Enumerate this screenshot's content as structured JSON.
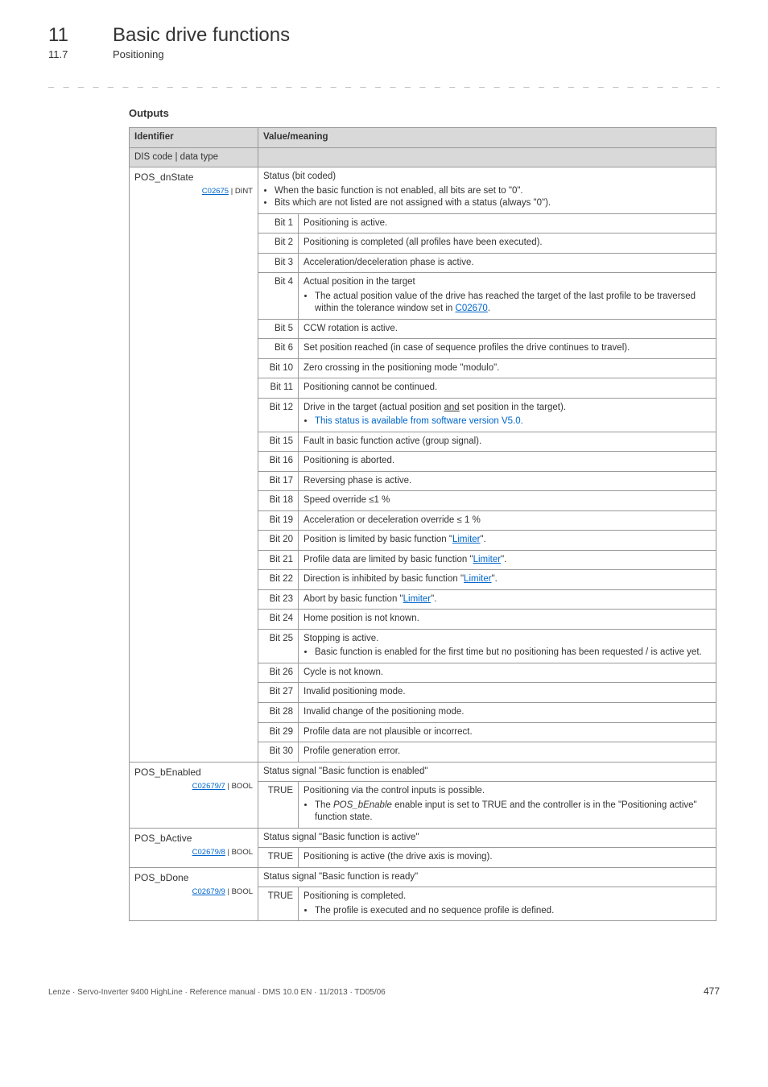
{
  "header": {
    "chapter_num": "11",
    "chapter_title": "Basic drive functions",
    "sub_num": "11.7",
    "sub_title": "Positioning"
  },
  "section_title": "Outputs",
  "table": {
    "headers": {
      "id": "Identifier",
      "val": "Value/meaning",
      "dis": "DIS code | data type"
    },
    "groups": [
      {
        "id_name": "POS_dnState",
        "code": "C02675",
        "type": " | DINT",
        "summary_label": "Status (bit coded)",
        "summary_bullets": [
          "When the basic function is not enabled, all bits are set to \"0\".",
          "Bits which are not listed are not assigned with a status (always \"0\")."
        ],
        "rows": [
          {
            "bit": "Bit 1",
            "html": "Positioning is active."
          },
          {
            "bit": "Bit 2",
            "html": "Positioning is completed (all profiles have been executed)."
          },
          {
            "bit": "Bit 3",
            "html": "Acceleration/deceleration phase is active."
          },
          {
            "bit": "Bit 4",
            "html": "Actual position in the target<ul class='bullets'><li>The actual position value of the drive has reached the target of the last profile to be traversed within the tolerance window set in <span class='link'>C02670</span>.</li></ul>"
          },
          {
            "bit": "Bit 5",
            "html": "CCW rotation is active."
          },
          {
            "bit": "Bit 6",
            "html": "Set position reached (in case of sequence profiles the drive continues to travel)."
          },
          {
            "bit": "Bit 10",
            "html": "Zero crossing in the positioning mode \"modulo\"."
          },
          {
            "bit": "Bit 11",
            "html": "Positioning cannot be continued."
          },
          {
            "bit": "Bit 12",
            "html": "Drive in the target (actual position <span class='und'>and</span> set position in the target).<ul class='bullets'><li><span class='blue-txt'>This status is available from software version V5.0.</span></li></ul>"
          },
          {
            "bit": "Bit 15",
            "html": "Fault in basic function active (group signal)."
          },
          {
            "bit": "Bit 16",
            "html": "Positioning is aborted."
          },
          {
            "bit": "Bit 17",
            "html": "Reversing phase is active."
          },
          {
            "bit": "Bit 18",
            "html": "Speed override ≤1 %"
          },
          {
            "bit": "Bit 19",
            "html": "Acceleration or deceleration override ≤ 1 %"
          },
          {
            "bit": "Bit 20",
            "html": "Position is limited by basic function \"<span class='link'>Limiter</span>\"."
          },
          {
            "bit": "Bit 21",
            "html": "Profile data are limited by basic function \"<span class='link'>Limiter</span>\"."
          },
          {
            "bit": "Bit 22",
            "html": "Direction is inhibited by basic function \"<span class='link'>Limiter</span>\"."
          },
          {
            "bit": "Bit 23",
            "html": "Abort by basic function \"<span class='link'>Limiter</span>\"."
          },
          {
            "bit": "Bit 24",
            "html": "Home position is not known."
          },
          {
            "bit": "Bit 25",
            "html": "Stopping is active.<ul class='bullets'><li>Basic function is enabled for the first time but no positioning has been requested / is active yet.</li></ul>"
          },
          {
            "bit": "Bit 26",
            "html": "Cycle is not known."
          },
          {
            "bit": "Bit 27",
            "html": "Invalid positioning mode."
          },
          {
            "bit": "Bit 28",
            "html": "Invalid change of the positioning mode."
          },
          {
            "bit": "Bit 29",
            "html": "Profile data are not plausible or incorrect."
          },
          {
            "bit": "Bit 30",
            "html": "Profile generation error."
          }
        ]
      },
      {
        "id_name": "POS_bEnabled",
        "code": "C02679/7",
        "type": " | BOOL",
        "summary_label": "Status signal \"Basic function is enabled\"",
        "rows": [
          {
            "bit": "TRUE",
            "html": "Positioning via the control inputs is possible.<ul class='bullets'><li>The <i>POS_bEnable</i> enable input is set to TRUE and the controller is in the \"Positioning active\" function state.</li></ul>"
          }
        ]
      },
      {
        "id_name": "POS_bActive",
        "code": "C02679/8",
        "type": " | BOOL",
        "summary_label": "Status signal \"Basic function is active\"",
        "rows": [
          {
            "bit": "TRUE",
            "html": "Positioning is active (the drive axis is moving)."
          }
        ]
      },
      {
        "id_name": "POS_bDone",
        "code": "C02679/9",
        "type": " | BOOL",
        "summary_label": "Status signal \"Basic function is ready\"",
        "rows": [
          {
            "bit": "TRUE",
            "html": "Positioning is completed.<ul class='bullets'><li>The profile is executed and no sequence profile is defined.</li></ul>"
          }
        ]
      }
    ]
  },
  "footer": {
    "text": "Lenze · Servo-Inverter 9400 HighLine · Reference manual · DMS 10.0 EN · 11/2013 · TD05/06",
    "page": "477"
  },
  "layout": {
    "bit_col_width": 50
  }
}
